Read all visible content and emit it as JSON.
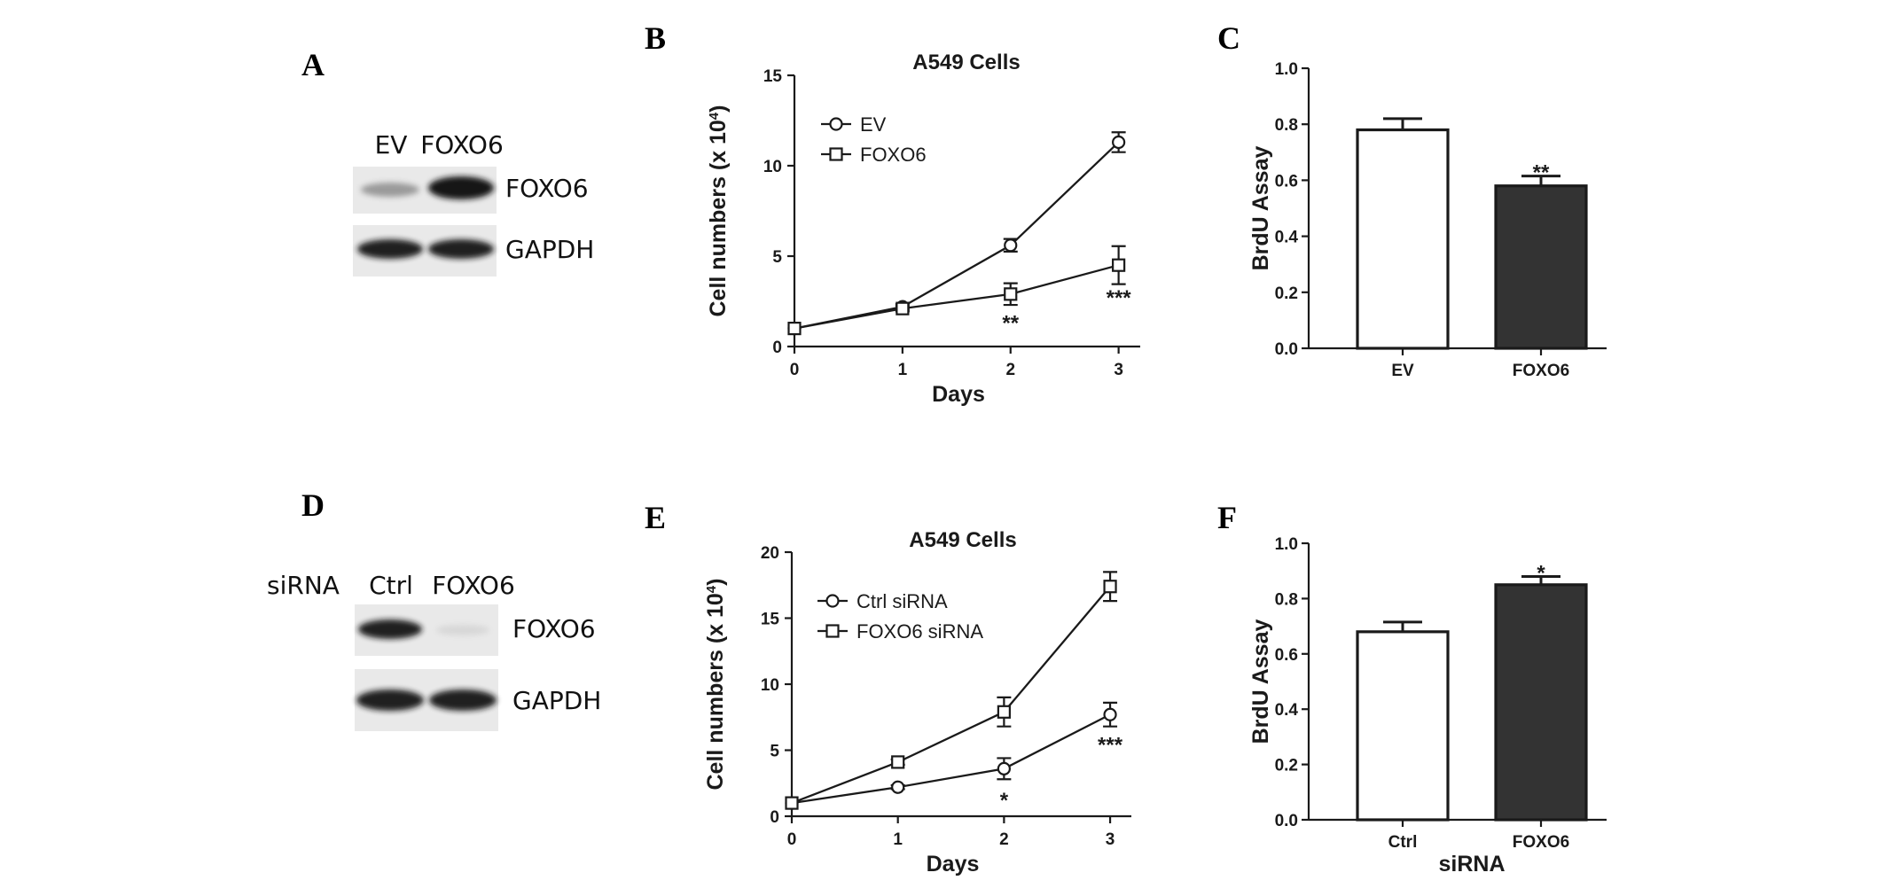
{
  "panels": {
    "A": "A",
    "B": "B",
    "C": "C",
    "D": "D",
    "E": "E",
    "F": "F"
  },
  "blots": [
    {
      "id": "A",
      "row_label": "",
      "lanes": [
        "EV",
        "FOXO6"
      ],
      "bands": [
        {
          "label": "FOXO6",
          "intensity": [
            0.45,
            1.0
          ]
        },
        {
          "label": "GAPDH",
          "intensity": [
            0.95,
            0.95
          ]
        }
      ]
    },
    {
      "id": "D",
      "row_label": "siRNA",
      "lanes": [
        "Ctrl",
        "FOXO6"
      ],
      "bands": [
        {
          "label": "FOXO6",
          "intensity": [
            0.95,
            0.08
          ]
        },
        {
          "label": "GAPDH",
          "intensity": [
            0.95,
            0.95
          ]
        }
      ]
    }
  ],
  "chart_data": [
    {
      "id": "B",
      "type": "line",
      "title": "A549 Cells",
      "xlabel": "Days",
      "ylabel": "Cell numbers (x 10",
      "ylabel_sup": "4",
      "ylabel_close": ")",
      "x": [
        0,
        1,
        2,
        3
      ],
      "xlim": [
        0,
        3.2
      ],
      "ylim": [
        0,
        15
      ],
      "yticks": [
        0,
        5,
        10,
        15
      ],
      "series": [
        {
          "name": "EV",
          "marker": "circle",
          "values": [
            1.0,
            2.2,
            5.6,
            11.3
          ],
          "errors": [
            0.1,
            0.15,
            0.35,
            0.55
          ]
        },
        {
          "name": "FOXO6",
          "marker": "square",
          "values": [
            1.0,
            2.1,
            2.9,
            4.5
          ],
          "errors": [
            0.1,
            0.15,
            0.6,
            1.05
          ]
        }
      ],
      "annotations": [
        {
          "x": 2,
          "y": 1.3,
          "text": "**"
        },
        {
          "x": 3,
          "y": 2.7,
          "text": "***"
        }
      ]
    },
    {
      "id": "C",
      "type": "bar",
      "title": "",
      "xlabel": "",
      "ylabel": "BrdU Assay",
      "categories": [
        "EV",
        "FOXO6"
      ],
      "values": [
        0.78,
        0.58
      ],
      "errors": [
        0.04,
        0.035
      ],
      "fills": [
        "#ffffff",
        "#333333"
      ],
      "ylim": [
        0,
        1.0
      ],
      "yticks": [
        "0.0",
        "0.2",
        "0.4",
        "0.6",
        "0.8",
        "1.0"
      ],
      "annotations": [
        {
          "category": 1,
          "text": "**"
        }
      ]
    },
    {
      "id": "E",
      "type": "line",
      "title": "A549 Cells",
      "xlabel": "Days",
      "ylabel": "Cell numbers (x 10",
      "ylabel_sup": "4",
      "ylabel_close": ")",
      "x": [
        0,
        1,
        2,
        3
      ],
      "xlim": [
        0,
        3.2
      ],
      "ylim": [
        0,
        20
      ],
      "yticks": [
        0,
        5,
        10,
        15,
        20
      ],
      "series": [
        {
          "name": "Ctrl siRNA",
          "marker": "circle",
          "values": [
            1.0,
            2.2,
            3.6,
            7.7
          ],
          "errors": [
            0.1,
            0.15,
            0.8,
            0.9
          ]
        },
        {
          "name": "FOXO6 siRNA",
          "marker": "square",
          "values": [
            1.0,
            4.1,
            7.9,
            17.4
          ],
          "errors": [
            0.1,
            0.2,
            1.1,
            1.1
          ]
        }
      ],
      "annotations": [
        {
          "x": 2,
          "y": 1.2,
          "text": "*"
        },
        {
          "x": 3,
          "y": 5.4,
          "text": "***"
        }
      ]
    },
    {
      "id": "F",
      "type": "bar",
      "title": "",
      "xlabel": "siRNA",
      "ylabel": "BrdU Assay",
      "categories": [
        "Ctrl",
        "FOXO6"
      ],
      "values": [
        0.68,
        0.85
      ],
      "errors": [
        0.035,
        0.03
      ],
      "fills": [
        "#ffffff",
        "#333333"
      ],
      "ylim": [
        0,
        1.0
      ],
      "yticks": [
        "0.0",
        "0.2",
        "0.4",
        "0.6",
        "0.8",
        "1.0"
      ],
      "annotations": [
        {
          "category": 1,
          "text": "*"
        }
      ]
    }
  ]
}
